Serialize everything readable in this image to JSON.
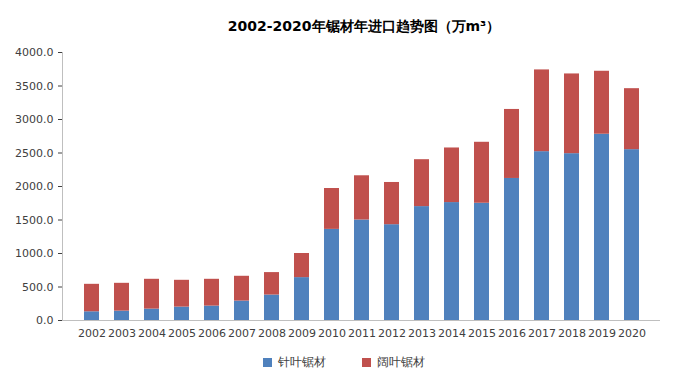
{
  "chart_data": {
    "type": "bar",
    "stacked": true,
    "title": "2002-2020年锯材年进口趋势图（万m³）",
    "categories": [
      "2002",
      "2003",
      "2004",
      "2005",
      "2006",
      "2007",
      "2008",
      "2009",
      "2010",
      "2011",
      "2012",
      "2013",
      "2014",
      "2015",
      "2016",
      "2017",
      "2018",
      "2019",
      "2020"
    ],
    "series": [
      {
        "name": "针叶锯材",
        "color": "#4f81bd",
        "values": [
          130,
          140,
          170,
          200,
          215,
          290,
          380,
          640,
          1360,
          1500,
          1430,
          1700,
          1760,
          1750,
          2120,
          2520,
          2490,
          2780,
          2550
        ]
      },
      {
        "name": "阔叶锯材",
        "color": "#c0504d",
        "values": [
          410,
          415,
          445,
          400,
          400,
          370,
          335,
          360,
          610,
          660,
          630,
          700,
          815,
          910,
          1030,
          1220,
          1190,
          940,
          910
        ]
      }
    ],
    "ylim": [
      0,
      4000
    ],
    "yticks": [
      {
        "value": 0,
        "label": "0.0"
      },
      {
        "value": 500,
        "label": "500.0"
      },
      {
        "value": 1000,
        "label": "1000.0"
      },
      {
        "value": 1500,
        "label": "1500.0"
      },
      {
        "value": 2000,
        "label": "2000.0"
      },
      {
        "value": 2500,
        "label": "2500.0"
      },
      {
        "value": 3000,
        "label": "3000.0"
      },
      {
        "value": 3500,
        "label": "3500.0"
      },
      {
        "value": 4000,
        "label": "4000.0"
      }
    ],
    "grid": false,
    "legend": "bottom"
  }
}
